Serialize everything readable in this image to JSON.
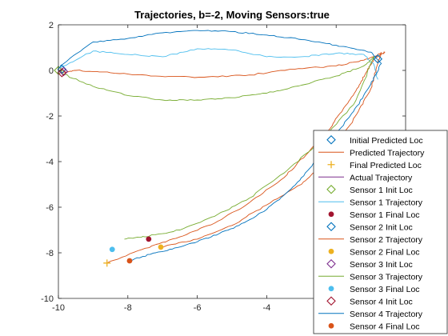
{
  "chart_data": {
    "type": "line",
    "title": "Trajectories, b=-2, Moving Sensors:true",
    "xlabel": "",
    "ylabel": "",
    "xlim": [
      -10,
      0
    ],
    "ylim": [
      -10,
      2
    ],
    "xticks": [
      -10,
      -8,
      -6,
      -4,
      -2
    ],
    "yticks": [
      2,
      0,
      -2,
      -4,
      -6,
      -8,
      -10
    ],
    "grid": false,
    "legend_position": "bottom-right",
    "colors": {
      "blue": "#0072BD",
      "orange": "#D95319",
      "yellow": "#EDB120",
      "purple": "#7E2F8E",
      "green": "#77AC30",
      "cyan": "#4DBEEE",
      "maroon": "#A2142F"
    },
    "series": [
      {
        "name": "Initial Predicted Loc",
        "kind": "marker",
        "marker": "diamond-open",
        "color": "#0072BD",
        "x": [
          -0.8
        ],
        "y": [
          0.5
        ]
      },
      {
        "name": "Predicted Trajectory",
        "kind": "line",
        "color": "#D95319",
        "x": [
          -8.6,
          -7.5,
          -6.5,
          -5.5,
          -4.5,
          -3.5,
          -2.8,
          -2.2,
          -1.8,
          -1.4,
          -1.1,
          -0.9,
          -0.7,
          -0.6,
          -1.2,
          -2.0,
          -3.2,
          -4.5,
          -5.8,
          -7.2,
          -8.5,
          -9.5,
          -9.95
        ],
        "y": [
          -8.45,
          -7.8,
          -7.3,
          -6.7,
          -5.8,
          -4.7,
          -3.6,
          -2.6,
          -1.7,
          -0.8,
          0.0,
          0.5,
          0.7,
          0.8,
          0.45,
          0.2,
          0.05,
          -0.2,
          -0.3,
          -0.25,
          -0.1,
          0.0,
          -0.1
        ]
      },
      {
        "name": "Final Predicted Loc",
        "kind": "marker",
        "marker": "plus",
        "color": "#EDB120",
        "x": [
          -8.6
        ],
        "y": [
          -8.45
        ]
      },
      {
        "name": "Actual Trajectory",
        "kind": "line",
        "color": "#7E2F8E",
        "x": [],
        "y": []
      },
      {
        "name": "Sensor 1 Init Loc",
        "kind": "marker",
        "marker": "diamond-open",
        "color": "#77AC30",
        "x": [
          -10.0
        ],
        "y": [
          0.0
        ]
      },
      {
        "name": "Sensor 1 Trajectory",
        "kind": "line",
        "color": "#4DBEEE",
        "x": [
          -9.95,
          -9.0,
          -8.0,
          -7.0,
          -6.0,
          -5.0,
          -4.0,
          -3.0,
          -2.0,
          -1.2,
          -0.9,
          -0.8
        ],
        "y": [
          0.1,
          0.85,
          0.7,
          0.6,
          0.95,
          0.9,
          0.6,
          0.6,
          0.75,
          0.7,
          0.2,
          -0.4
        ]
      },
      {
        "name": "Sensor 1 Final Loc",
        "kind": "marker",
        "marker": "dot",
        "color": "#A2142F",
        "x": [
          -7.4
        ],
        "y": [
          -7.4
        ]
      },
      {
        "name": "Sensor 2 Init Loc",
        "kind": "marker",
        "marker": "diamond-open",
        "color": "#0072BD",
        "x": [
          -9.9
        ],
        "y": [
          0.05
        ]
      },
      {
        "name": "Sensor 2 Trajectory",
        "kind": "line",
        "color": "#D95319",
        "x": [
          -7.05,
          -6.0,
          -5.0,
          -4.0,
          -3.0,
          -2.4,
          -1.9,
          -1.4,
          -1.0,
          -0.8,
          -0.7
        ],
        "y": [
          -7.75,
          -7.4,
          -6.8,
          -5.9,
          -5.0,
          -4.1,
          -3.1,
          -1.9,
          -0.8,
          0.3,
          0.8
        ]
      },
      {
        "name": "Sensor 2 Final Loc",
        "kind": "marker",
        "marker": "dot",
        "color": "#EDB120",
        "x": [
          -7.05
        ],
        "y": [
          -7.75
        ]
      },
      {
        "name": "Sensor 3 Init Loc",
        "kind": "marker",
        "marker": "diamond-open",
        "color": "#7E2F8E",
        "x": [
          -9.85
        ],
        "y": [
          -0.05
        ]
      },
      {
        "name": "Sensor 3 Trajectory",
        "kind": "line",
        "color": "#77AC30",
        "x": [
          -9.95,
          -9.0,
          -8.0,
          -7.0,
          -6.0,
          -5.0,
          -4.0,
          -3.0,
          -2.0,
          -1.2,
          -0.9,
          -1.5,
          -2.5,
          -3.5,
          -4.5,
          -5.5,
          -6.5,
          -7.5,
          -8.1
        ],
        "y": [
          -0.1,
          -0.7,
          -1.1,
          -1.3,
          -1.3,
          -1.2,
          -1.0,
          -0.65,
          -0.25,
          0.2,
          0.6,
          -1.5,
          -3.2,
          -4.5,
          -5.6,
          -6.4,
          -7.0,
          -7.3,
          -7.4
        ]
      },
      {
        "name": "Sensor 3 Final Loc",
        "kind": "marker",
        "marker": "dot",
        "color": "#4DBEEE",
        "x": [
          -8.45
        ],
        "y": [
          -7.85
        ]
      },
      {
        "name": "Sensor 4 Init Loc",
        "kind": "marker",
        "marker": "diamond-open",
        "color": "#A2142F",
        "x": [
          -9.9
        ],
        "y": [
          -0.1
        ]
      },
      {
        "name": "Sensor 4 Trajectory",
        "kind": "line",
        "color": "#0072BD",
        "x": [
          -9.95,
          -9.0,
          -8.0,
          -7.0,
          -6.0,
          -5.0,
          -4.0,
          -3.0,
          -2.0,
          -1.0,
          -0.7,
          -1.0,
          -1.5,
          -2.1,
          -2.7,
          -3.3,
          -4.0,
          -4.8,
          -5.6,
          -6.4,
          -7.2,
          -7.95
        ],
        "y": [
          0.2,
          1.25,
          1.4,
          1.65,
          1.75,
          1.7,
          1.55,
          1.35,
          1.1,
          0.8,
          0.3,
          -0.6,
          -1.8,
          -3.0,
          -4.2,
          -5.2,
          -6.1,
          -6.8,
          -7.3,
          -7.7,
          -8.0,
          -8.35
        ]
      },
      {
        "name": "Sensor 4 Final Loc",
        "kind": "marker",
        "marker": "dot",
        "color": "#D95319",
        "x": [
          -7.95
        ],
        "y": [
          -8.35
        ]
      }
    ]
  }
}
